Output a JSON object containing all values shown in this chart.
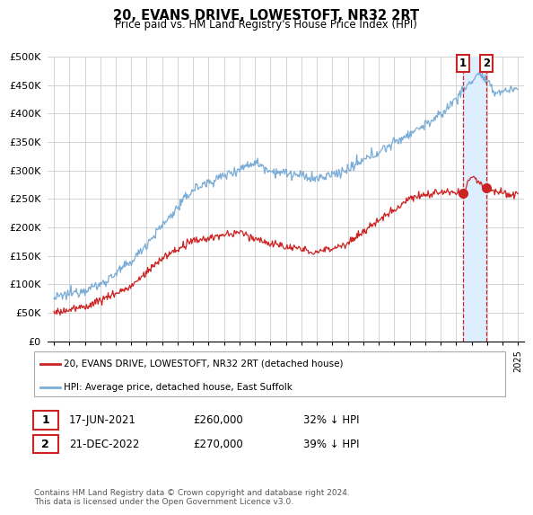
{
  "title": "20, EVANS DRIVE, LOWESTOFT, NR32 2RT",
  "subtitle": "Price paid vs. HM Land Registry's House Price Index (HPI)",
  "ylabel_ticks": [
    "£0",
    "£50K",
    "£100K",
    "£150K",
    "£200K",
    "£250K",
    "£300K",
    "£350K",
    "£400K",
    "£450K",
    "£500K"
  ],
  "ytick_values": [
    0,
    50000,
    100000,
    150000,
    200000,
    250000,
    300000,
    350000,
    400000,
    450000,
    500000
  ],
  "xlim_start": 1994.6,
  "xlim_end": 2025.4,
  "ylim": [
    0,
    500000
  ],
  "hpi_color": "#7aacd6",
  "price_color": "#cc2222",
  "shade_color": "#ddeeff",
  "marker1_date": 2021.46,
  "marker1_price": 260000,
  "marker1_label": "17-JUN-2021",
  "marker1_text": "£260,000",
  "marker1_hpi_pct": "32% ↓ HPI",
  "marker2_date": 2022.97,
  "marker2_price": 270000,
  "marker2_label": "21-DEC-2022",
  "marker2_text": "£270,000",
  "marker2_hpi_pct": "39% ↓ HPI",
  "legend_label1": "20, EVANS DRIVE, LOWESTOFT, NR32 2RT (detached house)",
  "legend_label2": "HPI: Average price, detached house, East Suffolk",
  "footnote": "Contains HM Land Registry data © Crown copyright and database right 2024.\nThis data is licensed under the Open Government Licence v3.0.",
  "background_color": "#ffffff",
  "grid_color": "#cccccc"
}
